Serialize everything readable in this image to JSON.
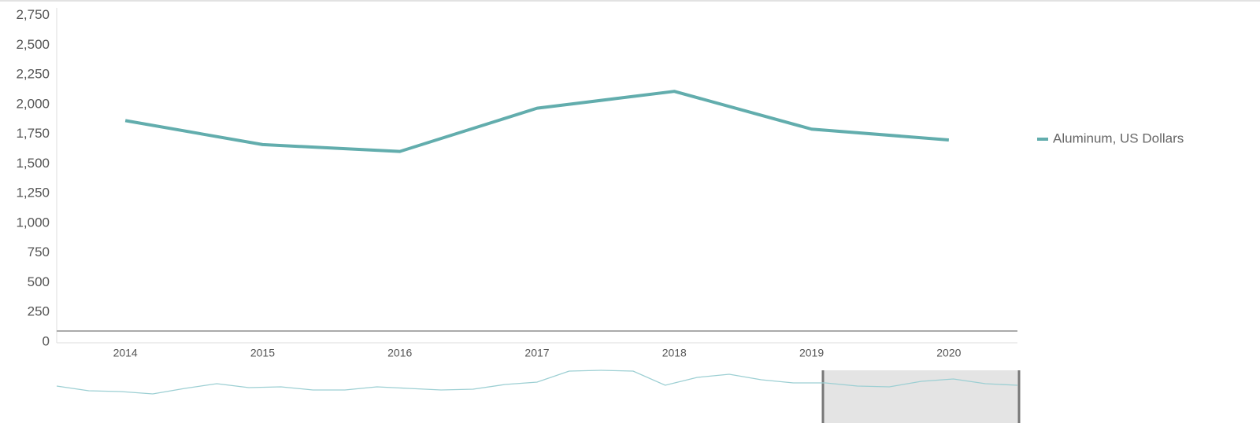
{
  "chart_data": {
    "type": "line",
    "categories": [
      "2014",
      "2015",
      "2016",
      "2017",
      "2018",
      "2019",
      "2020"
    ],
    "series": [
      {
        "name": "Aluminum, US Dollars",
        "color": "#62adad",
        "values": [
          1864,
          1662,
          1604,
          1968,
          2110,
          1792,
          1701
        ]
      }
    ],
    "ylim": [
      0,
      2750
    ],
    "yticks": [
      0,
      250,
      500,
      750,
      {
        "value": 1000,
        "label": "1,000"
      },
      {
        "value": 1250,
        "label": "1,250"
      },
      {
        "value": 1500,
        "label": "1,500"
      },
      {
        "value": 1750,
        "label": "1,750"
      },
      {
        "value": 2000,
        "label": "2,000"
      },
      {
        "value": 2250,
        "label": "2,250"
      },
      {
        "value": 2500,
        "label": "2,500"
      },
      {
        "value": 2750,
        "label": "2,750"
      }
    ],
    "legend": "right",
    "navigator": {
      "color": "#9ccfd3",
      "values": [
        1580,
        1400,
        1370,
        1280,
        1490,
        1670,
        1520,
        1550,
        1430,
        1430,
        1550,
        1490,
        1430,
        1460,
        1640,
        1730,
        2150,
        2180,
        2150,
        1610,
        1910,
        2030,
        1820,
        1700,
        1700,
        1580,
        1550,
        1760,
        1850,
        1670,
        1610
      ]
    }
  }
}
